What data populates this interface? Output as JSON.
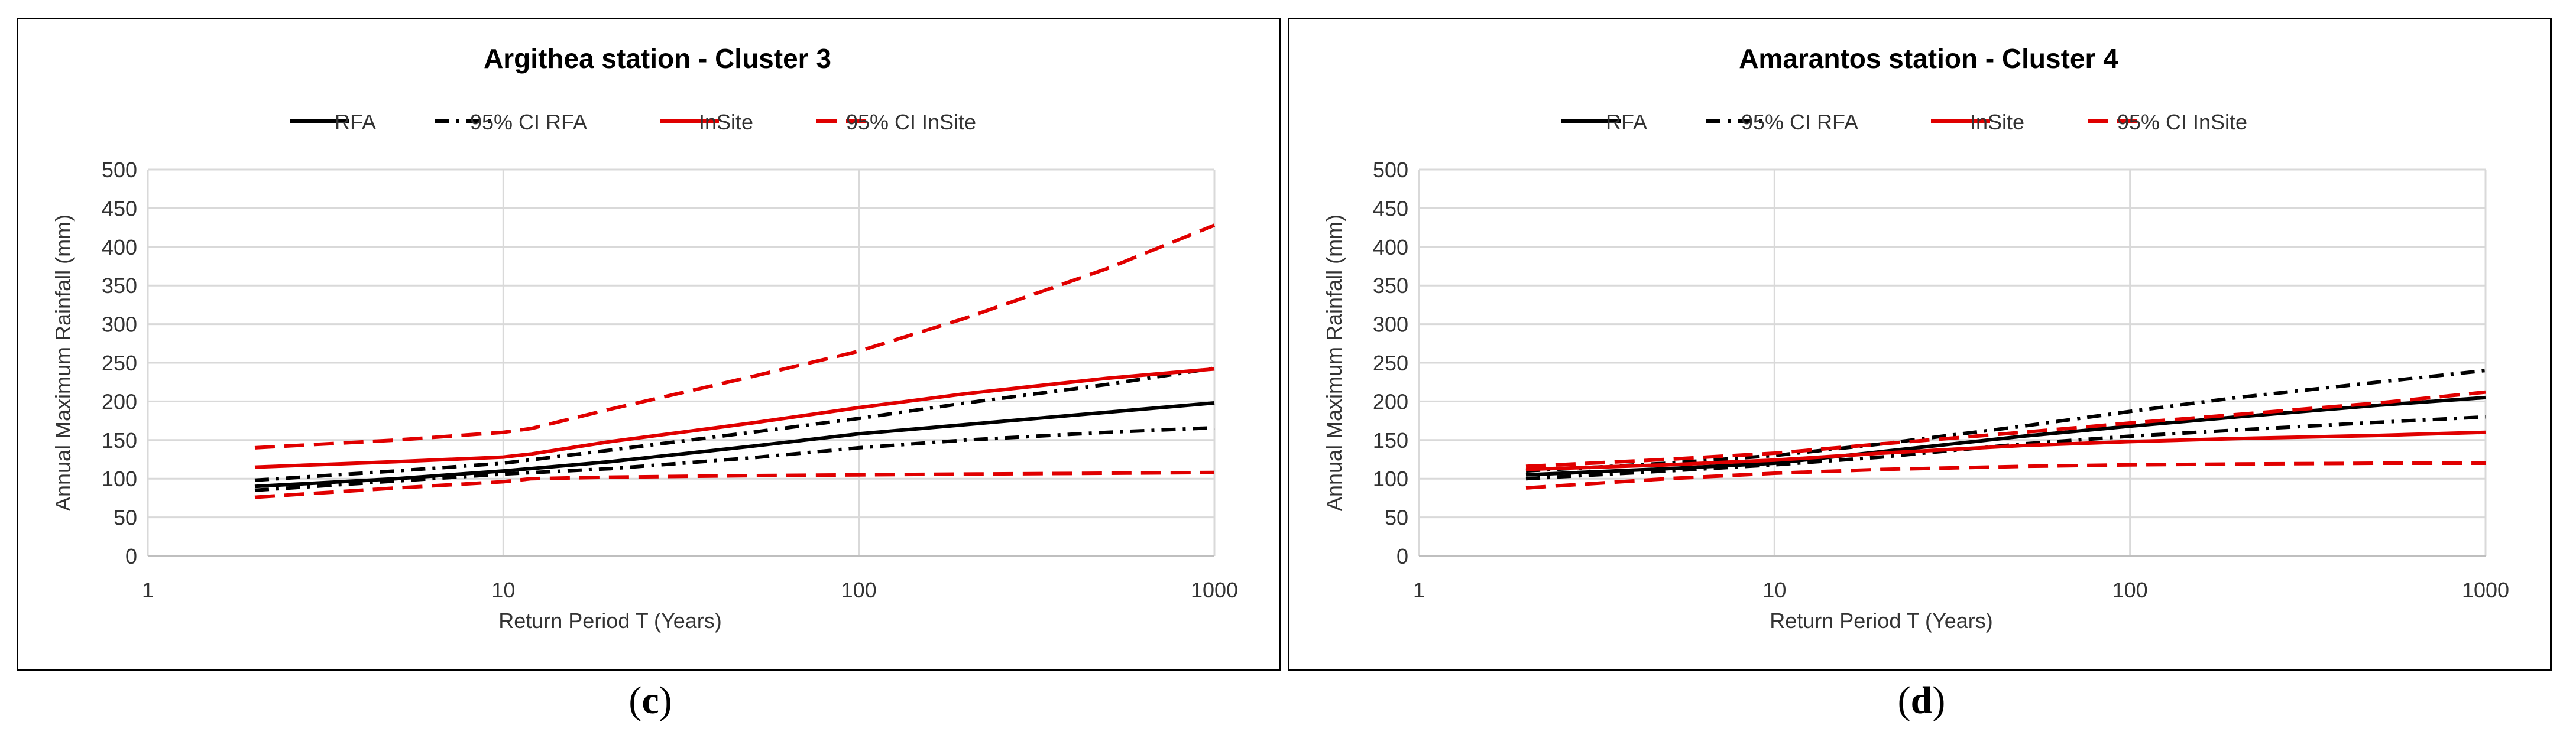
{
  "chart_data": [
    {
      "type": "line",
      "title": "Argithea station - Cluster 3",
      "xlabel": "Return Period T (Years)",
      "ylabel": "Annual Maximum Rainfall (mm)",
      "xscale": "log",
      "xlim": [
        1,
        1000
      ],
      "ylim": [
        0,
        500
      ],
      "xticks": [
        "1",
        "10",
        "100",
        "1000"
      ],
      "yticks": [
        "0",
        "50",
        "100",
        "150",
        "200",
        "250",
        "300",
        "350",
        "400",
        "450",
        "500"
      ],
      "grid": true,
      "legend": "top",
      "series": [
        {
          "name": "RFA",
          "color": "#000000",
          "dash": "solid",
          "x": [
            2,
            5,
            10,
            20,
            50,
            100,
            200,
            500,
            1000
          ],
          "y": [
            90,
            100,
            110,
            122,
            142,
            158,
            170,
            186,
            198
          ]
        },
        {
          "name": "95% CI RFA",
          "color": "#000000",
          "dash": "dashdot",
          "x": [
            2,
            5,
            10,
            20,
            50,
            100,
            200,
            500,
            1000
          ],
          "y": [
            98,
            110,
            120,
            137,
            160,
            178,
            198,
            222,
            243
          ]
        },
        {
          "name": "95% CI RFA",
          "color": "#000000",
          "dash": "dashdot",
          "x": [
            2,
            5,
            10,
            20,
            50,
            100,
            200,
            500,
            1000
          ],
          "y": [
            85,
            97,
            106,
            113,
            127,
            140,
            150,
            160,
            166
          ]
        },
        {
          "name": "InSite",
          "color": "#e00000",
          "dash": "solid",
          "x": [
            2,
            5,
            10,
            12,
            20,
            50,
            100,
            200,
            500,
            1000
          ],
          "y": [
            115,
            122,
            128,
            132,
            148,
            172,
            192,
            210,
            230,
            242
          ]
        },
        {
          "name": "95% CI InSite",
          "color": "#e00000",
          "dash": "dashed",
          "x": [
            2,
            5,
            10,
            12,
            20,
            50,
            100,
            200,
            500,
            1000
          ],
          "y": [
            140,
            150,
            160,
            165,
            190,
            232,
            265,
            308,
            372,
            428
          ]
        },
        {
          "name": "95% CI InSite",
          "color": "#e00000",
          "dash": "dashed",
          "x": [
            2,
            5,
            10,
            12,
            20,
            50,
            100,
            200,
            500,
            1000
          ],
          "y": [
            76,
            88,
            96,
            100,
            102,
            104,
            105,
            106,
            107,
            108
          ]
        }
      ]
    },
    {
      "type": "line",
      "title": "Amarantos station - Cluster 4",
      "xlabel": "Return Period T (Years)",
      "ylabel": "Annual Maximum Rainfall (mm)",
      "xscale": "log",
      "xlim": [
        1,
        1000
      ],
      "ylim": [
        0,
        500
      ],
      "xticks": [
        "1",
        "10",
        "100",
        "1000"
      ],
      "yticks": [
        "0",
        "50",
        "100",
        "150",
        "200",
        "250",
        "300",
        "350",
        "400",
        "450",
        "500"
      ],
      "grid": true,
      "legend": "top",
      "series": [
        {
          "name": "RFA",
          "color": "#000000",
          "dash": "solid",
          "x": [
            2,
            5,
            10,
            20,
            50,
            100,
            200,
            500,
            1000
          ],
          "y": [
            105,
            113,
            120,
            135,
            155,
            168,
            180,
            195,
            205
          ]
        },
        {
          "name": "95% CI RFA",
          "color": "#000000",
          "dash": "dashdot",
          "x": [
            2,
            5,
            10,
            20,
            50,
            100,
            200,
            500,
            1000
          ],
          "y": [
            110,
            120,
            130,
            145,
            168,
            187,
            205,
            225,
            240
          ]
        },
        {
          "name": "95% CI RFA",
          "color": "#000000",
          "dash": "dashdot",
          "x": [
            2,
            5,
            10,
            20,
            50,
            100,
            200,
            500,
            1000
          ],
          "y": [
            100,
            110,
            118,
            128,
            145,
            155,
            163,
            173,
            180
          ]
        },
        {
          "name": "InSite",
          "color": "#e00000",
          "dash": "solid",
          "x": [
            2,
            5,
            10,
            20,
            50,
            100,
            200,
            500,
            1000
          ],
          "y": [
            112,
            118,
            124,
            133,
            143,
            148,
            152,
            156,
            160
          ]
        },
        {
          "name": "95% CI InSite",
          "color": "#e00000",
          "dash": "dashed",
          "x": [
            2,
            5,
            10,
            20,
            50,
            100,
            200,
            500,
            1000
          ],
          "y": [
            116,
            125,
            133,
            145,
            160,
            172,
            183,
            198,
            212
          ]
        },
        {
          "name": "95% CI InSite",
          "color": "#e00000",
          "dash": "dashed",
          "x": [
            2,
            5,
            10,
            20,
            50,
            100,
            200,
            500,
            1000
          ],
          "y": [
            88,
            100,
            107,
            112,
            116,
            118,
            119,
            120,
            120
          ]
        }
      ]
    }
  ],
  "legend_items": [
    {
      "label": "RFA",
      "color": "#000000",
      "dash": "solid"
    },
    {
      "label": "95% CI RFA",
      "color": "#000000",
      "dash": "dashdot"
    },
    {
      "label": "InSite",
      "color": "#e00000",
      "dash": "solid"
    },
    {
      "label": "95% CI InSite",
      "color": "#e00000",
      "dash": "dashed"
    }
  ],
  "captions": [
    {
      "open": "(",
      "letter": "c",
      "close": ")"
    },
    {
      "open": "(",
      "letter": "d",
      "close": ")"
    }
  ]
}
